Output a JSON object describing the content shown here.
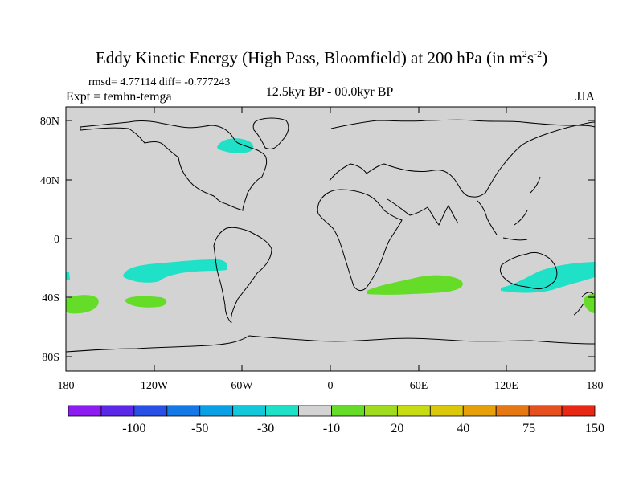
{
  "title": {
    "main": "Eddy Kinetic Energy (High Pass, Bloomfield) at 200 hPa (in m",
    "sup1": "2",
    "mid": "s",
    "sup2": "-2",
    "close": ")"
  },
  "stats": "rmsd= 4.77114 diff= -0.777243",
  "expt": "Expt = temhn-temga",
  "subtitle": "12.5kyr BP - 00.0kyr BP",
  "season": "JJA",
  "map": {
    "background_color": "#d3d3d3",
    "lat_labels": [
      "80N",
      "40N",
      "0",
      "40S",
      "80S"
    ],
    "lon_labels": [
      "180",
      "120W",
      "60W",
      "0",
      "60E",
      "120E",
      "180"
    ]
  },
  "colorbar": {
    "colors": [
      "#8c1cf0",
      "#5a28e6",
      "#2850e6",
      "#1478e6",
      "#0aa0e6",
      "#14c8dc",
      "#1ee1c8",
      "#d3d3d3",
      "#64dc28",
      "#a0dc1e",
      "#c8dc14",
      "#dcc80a",
      "#e6a00a",
      "#e67814",
      "#e6501e",
      "#e62814"
    ],
    "labels": [
      "-100",
      "-50",
      "-30",
      "-10",
      "20",
      "40",
      "75",
      "150"
    ]
  },
  "anomalies": [
    {
      "name": "north-atlantic-labrador",
      "color": "#1ee1c8",
      "lon": -58,
      "lat": 66
    },
    {
      "name": "south-pacific-east",
      "color": "#1ee1c8",
      "lon": -110,
      "lat": -30
    },
    {
      "name": "south-pacific-west-edge",
      "color": "#1ee1c8",
      "lon": -179,
      "lat": -30
    },
    {
      "name": "south-pacific-low",
      "color": "#64dc28",
      "lon": -167,
      "lat": -45
    },
    {
      "name": "south-pacific-mid-low",
      "color": "#64dc28",
      "lon": -118,
      "lat": -44
    },
    {
      "name": "south-indian-ocean",
      "color": "#64dc28",
      "lon": 58,
      "lat": -32
    },
    {
      "name": "australia-south",
      "color": "#1ee1c8",
      "lon": 150,
      "lat": -30
    },
    {
      "name": "new-zealand-east",
      "color": "#64dc28",
      "lon": 177,
      "lat": -47
    }
  ]
}
